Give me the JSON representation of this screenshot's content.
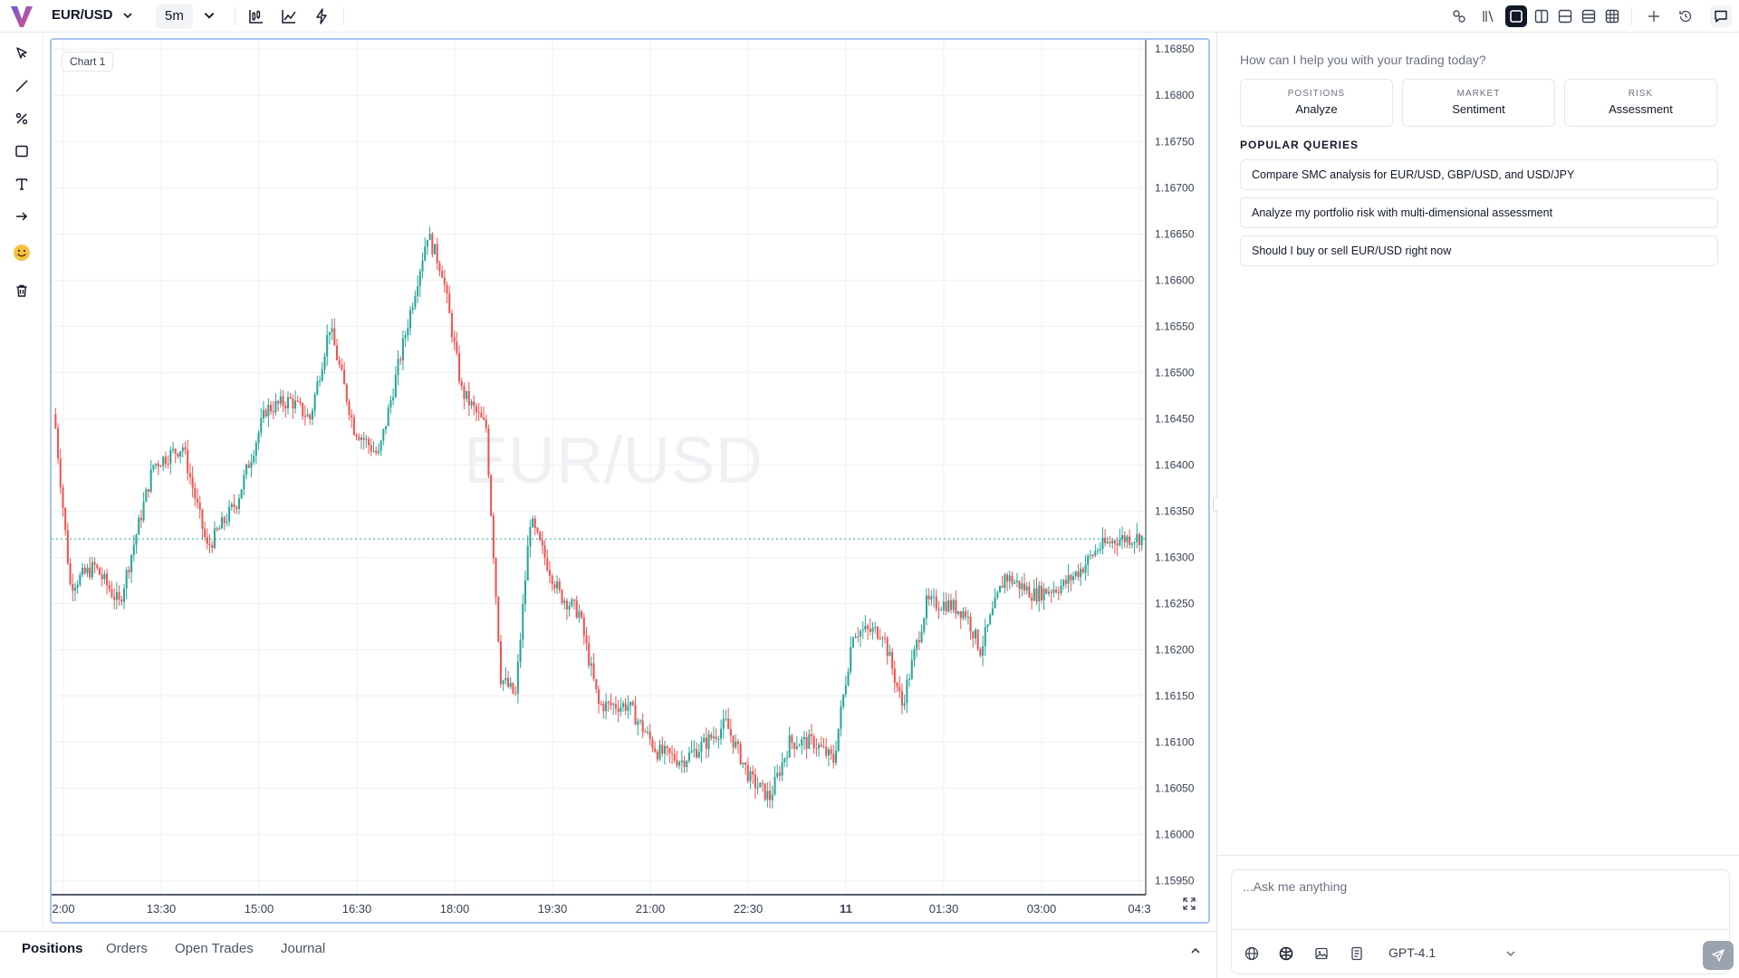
{
  "header": {
    "symbol": "EUR/USD",
    "timeframe": "5m"
  },
  "chart": {
    "badge": "Chart 1",
    "watermark": "EUR/USD"
  },
  "chart_data": {
    "type": "candlestick",
    "symbol": "EUR/USD",
    "interval": "5m",
    "y_ticks": [
      "1.16850",
      "1.16800",
      "1.16750",
      "1.16700",
      "1.16650",
      "1.16600",
      "1.16550",
      "1.16500",
      "1.16450",
      "1.16400",
      "1.16350",
      "1.16300",
      "1.16250",
      "1.16200",
      "1.16150",
      "1.16100",
      "1.16050",
      "1.16000",
      "1.15950"
    ],
    "ylim": [
      1.15935,
      1.1686
    ],
    "x_ticks": [
      "2:00",
      "13:30",
      "15:00",
      "16:30",
      "18:00",
      "19:30",
      "21:00",
      "22:30",
      "11",
      "01:30",
      "03:00",
      "04:3"
    ],
    "price_line": 1.1632,
    "up_color": "#26a69a",
    "down_color": "#ef5350",
    "close_path": [
      [
        0,
        1.1644
      ],
      [
        6,
        1.1627
      ],
      [
        16,
        1.1629
      ],
      [
        26,
        1.1625
      ],
      [
        40,
        1.164
      ],
      [
        52,
        1.1642
      ],
      [
        62,
        1.1631
      ],
      [
        74,
        1.1636
      ],
      [
        86,
        1.1646
      ],
      [
        96,
        1.1647
      ],
      [
        104,
        1.1645
      ],
      [
        112,
        1.1655
      ],
      [
        122,
        1.1644
      ],
      [
        132,
        1.1641
      ],
      [
        142,
        1.1653
      ],
      [
        152,
        1.1665
      ],
      [
        158,
        1.1661
      ],
      [
        166,
        1.1648
      ],
      [
        176,
        1.1644
      ],
      [
        182,
        1.1617
      ],
      [
        188,
        1.1615
      ],
      [
        194,
        1.1634
      ],
      [
        206,
        1.1626
      ],
      [
        214,
        1.1624
      ],
      [
        222,
        1.1614
      ],
      [
        234,
        1.1614
      ],
      [
        246,
        1.1609
      ],
      [
        256,
        1.1608
      ],
      [
        266,
        1.161
      ],
      [
        274,
        1.1612
      ],
      [
        284,
        1.1606
      ],
      [
        292,
        1.1604
      ],
      [
        300,
        1.161
      ],
      [
        310,
        1.161
      ],
      [
        318,
        1.1608
      ],
      [
        326,
        1.1622
      ],
      [
        338,
        1.1622
      ],
      [
        346,
        1.1614
      ],
      [
        356,
        1.1625
      ],
      [
        364,
        1.1625
      ],
      [
        372,
        1.1624
      ],
      [
        378,
        1.162
      ],
      [
        388,
        1.1628
      ],
      [
        400,
        1.1626
      ],
      [
        412,
        1.1627
      ],
      [
        420,
        1.1629
      ],
      [
        426,
        1.1631
      ],
      [
        434,
        1.1632
      ],
      [
        444,
        1.16322
      ]
    ]
  },
  "bottom_tabs": [
    "Positions",
    "Orders",
    "Open Trades",
    "Journal"
  ],
  "assistant": {
    "prompt": "How can I help you with your trading today?",
    "cards": [
      {
        "k": "POSITIONS",
        "v": "Analyze"
      },
      {
        "k": "MARKET",
        "v": "Sentiment"
      },
      {
        "k": "RISK",
        "v": "Assessment"
      }
    ],
    "popular_header": "POPULAR QUERIES",
    "queries": [
      "Compare SMC analysis for EUR/USD, GBP/USD, and USD/JPY",
      "Analyze my portfolio risk with multi-dimensional assessment",
      "Should I buy or sell EUR/USD right now"
    ],
    "input_placeholder": "...Ask me anything",
    "model": "GPT-4.1"
  }
}
